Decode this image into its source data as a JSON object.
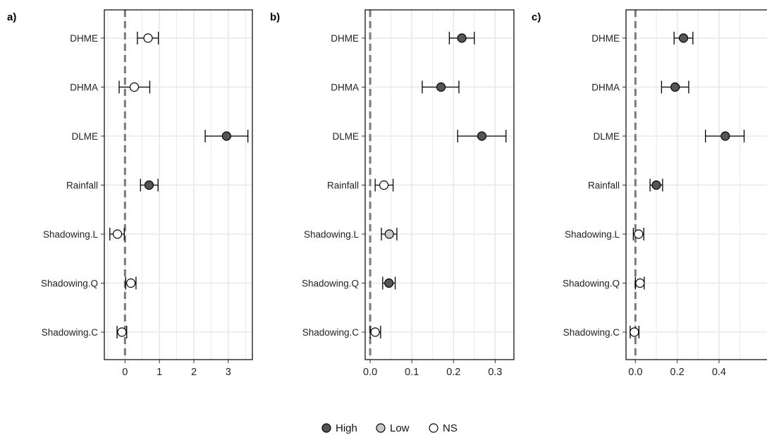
{
  "chart_data": [
    {
      "type": "scatter",
      "panel_label": "a)",
      "categories": [
        "DHME",
        "DHMA",
        "DLME",
        "Rainfall",
        "Shadowing.L",
        "Shadowing.Q",
        "Shadowing.C"
      ],
      "estimates": [
        0.67,
        0.27,
        2.95,
        0.7,
        -0.22,
        0.17,
        -0.09
      ],
      "ci_low": [
        0.36,
        -0.17,
        2.33,
        0.45,
        -0.44,
        0.02,
        -0.23
      ],
      "ci_high": [
        0.97,
        0.72,
        3.57,
        0.96,
        -0.02,
        0.32,
        0.05
      ],
      "significance": [
        "NS",
        "NS",
        "High",
        "High",
        "NS",
        "NS",
        "NS"
      ],
      "xlim": [
        -0.6,
        3.7
      ],
      "xticks": [
        0,
        1,
        2,
        3
      ],
      "xtick_labels": [
        "0",
        "1",
        "2",
        "3"
      ],
      "minor_gridlines": [
        -0.5,
        0.5,
        1.5,
        2.5,
        3.5
      ],
      "reference_line": 0,
      "grid": true
    },
    {
      "type": "scatter",
      "panel_label": "b)",
      "categories": [
        "DHME",
        "DHMA",
        "DLME",
        "Rainfall",
        "Shadowing.L",
        "Shadowing.Q",
        "Shadowing.C"
      ],
      "estimates": [
        0.22,
        0.17,
        0.268,
        0.033,
        0.046,
        0.045,
        0.012
      ],
      "ci_low": [
        0.19,
        0.125,
        0.21,
        0.012,
        0.027,
        0.03,
        0.0
      ],
      "ci_high": [
        0.25,
        0.213,
        0.326,
        0.055,
        0.064,
        0.06,
        0.025
      ],
      "significance": [
        "High",
        "High",
        "High",
        "NS",
        "Low",
        "High",
        "NS"
      ],
      "xlim": [
        -0.012,
        0.345
      ],
      "xticks": [
        0,
        0.1,
        0.2,
        0.3
      ],
      "xtick_labels": [
        "0.0",
        "0.1",
        "0.2",
        "0.3"
      ],
      "minor_gridlines": [
        0.05,
        0.15,
        0.25
      ],
      "reference_line": 0,
      "grid": true
    },
    {
      "type": "scatter",
      "panel_label": "c)",
      "categories": [
        "DHME",
        "DHMA",
        "DLME",
        "Rainfall",
        "Shadowing.L",
        "Shadowing.Q",
        "Shadowing.C"
      ],
      "estimates": [
        0.23,
        0.19,
        0.43,
        0.1,
        0.015,
        0.022,
        -0.005
      ],
      "ci_low": [
        0.185,
        0.125,
        0.335,
        0.07,
        -0.01,
        0.0,
        -0.025
      ],
      "ci_high": [
        0.275,
        0.255,
        0.52,
        0.13,
        0.04,
        0.042,
        0.017
      ],
      "significance": [
        "High",
        "High",
        "High",
        "High",
        "NS",
        "NS",
        "NS"
      ],
      "xlim": [
        -0.045,
        0.67
      ],
      "xticks": [
        0,
        0.2,
        0.4
      ],
      "xtick_labels": [
        "0.0",
        "0.2",
        "0.4"
      ],
      "minor_gridlines": [
        0.1,
        0.3,
        0.5
      ],
      "reference_line": 0,
      "grid": true
    }
  ],
  "legend": {
    "placement": "bottom-center",
    "entries": [
      {
        "label": "High",
        "color": "#555555"
      },
      {
        "label": "Low",
        "color": "#c8c8c8"
      },
      {
        "label": "NS",
        "color": "#ffffff"
      }
    ]
  },
  "colors": {
    "point_border": "#000000",
    "reference_line": "#7a7a7a",
    "gridline": "#e8e8e8"
  }
}
